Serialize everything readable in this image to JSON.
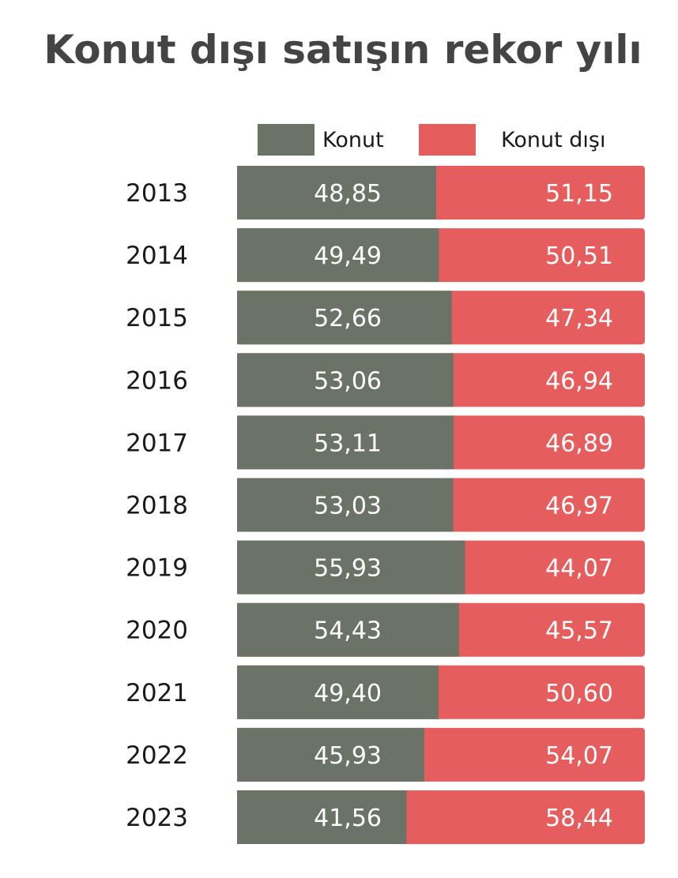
{
  "chart_data": {
    "type": "bar",
    "orientation": "horizontal",
    "stacked": true,
    "title": "Konut dışı satışın rekor yılı",
    "categories": [
      "2013",
      "2014",
      "2015",
      "2016",
      "2017",
      "2018",
      "2019",
      "2020",
      "2021",
      "2022",
      "2023"
    ],
    "series": [
      {
        "name": "Konut",
        "color": "#6a7366",
        "values": [
          48.85,
          49.49,
          52.66,
          53.06,
          53.11,
          53.03,
          55.93,
          54.43,
          49.4,
          45.93,
          41.56
        ],
        "labels": [
          "48,85",
          "49,49",
          "52,66",
          "53,06",
          "53,11",
          "53,03",
          "55,93",
          "54,43",
          "49,40",
          "45,93",
          "41,56"
        ]
      },
      {
        "name": "Konut dışı",
        "color": "#e55d5d",
        "values": [
          51.15,
          50.51,
          47.34,
          46.94,
          46.89,
          46.97,
          44.07,
          45.57,
          50.6,
          54.07,
          58.44
        ],
        "labels": [
          "51,15",
          "50,51",
          "47,34",
          "46,94",
          "46,89",
          "46,97",
          "44,07",
          "45,57",
          "50,60",
          "54,07",
          "58,44"
        ]
      }
    ],
    "xlim": [
      0,
      100
    ],
    "legend_position": "top",
    "grid": false
  }
}
